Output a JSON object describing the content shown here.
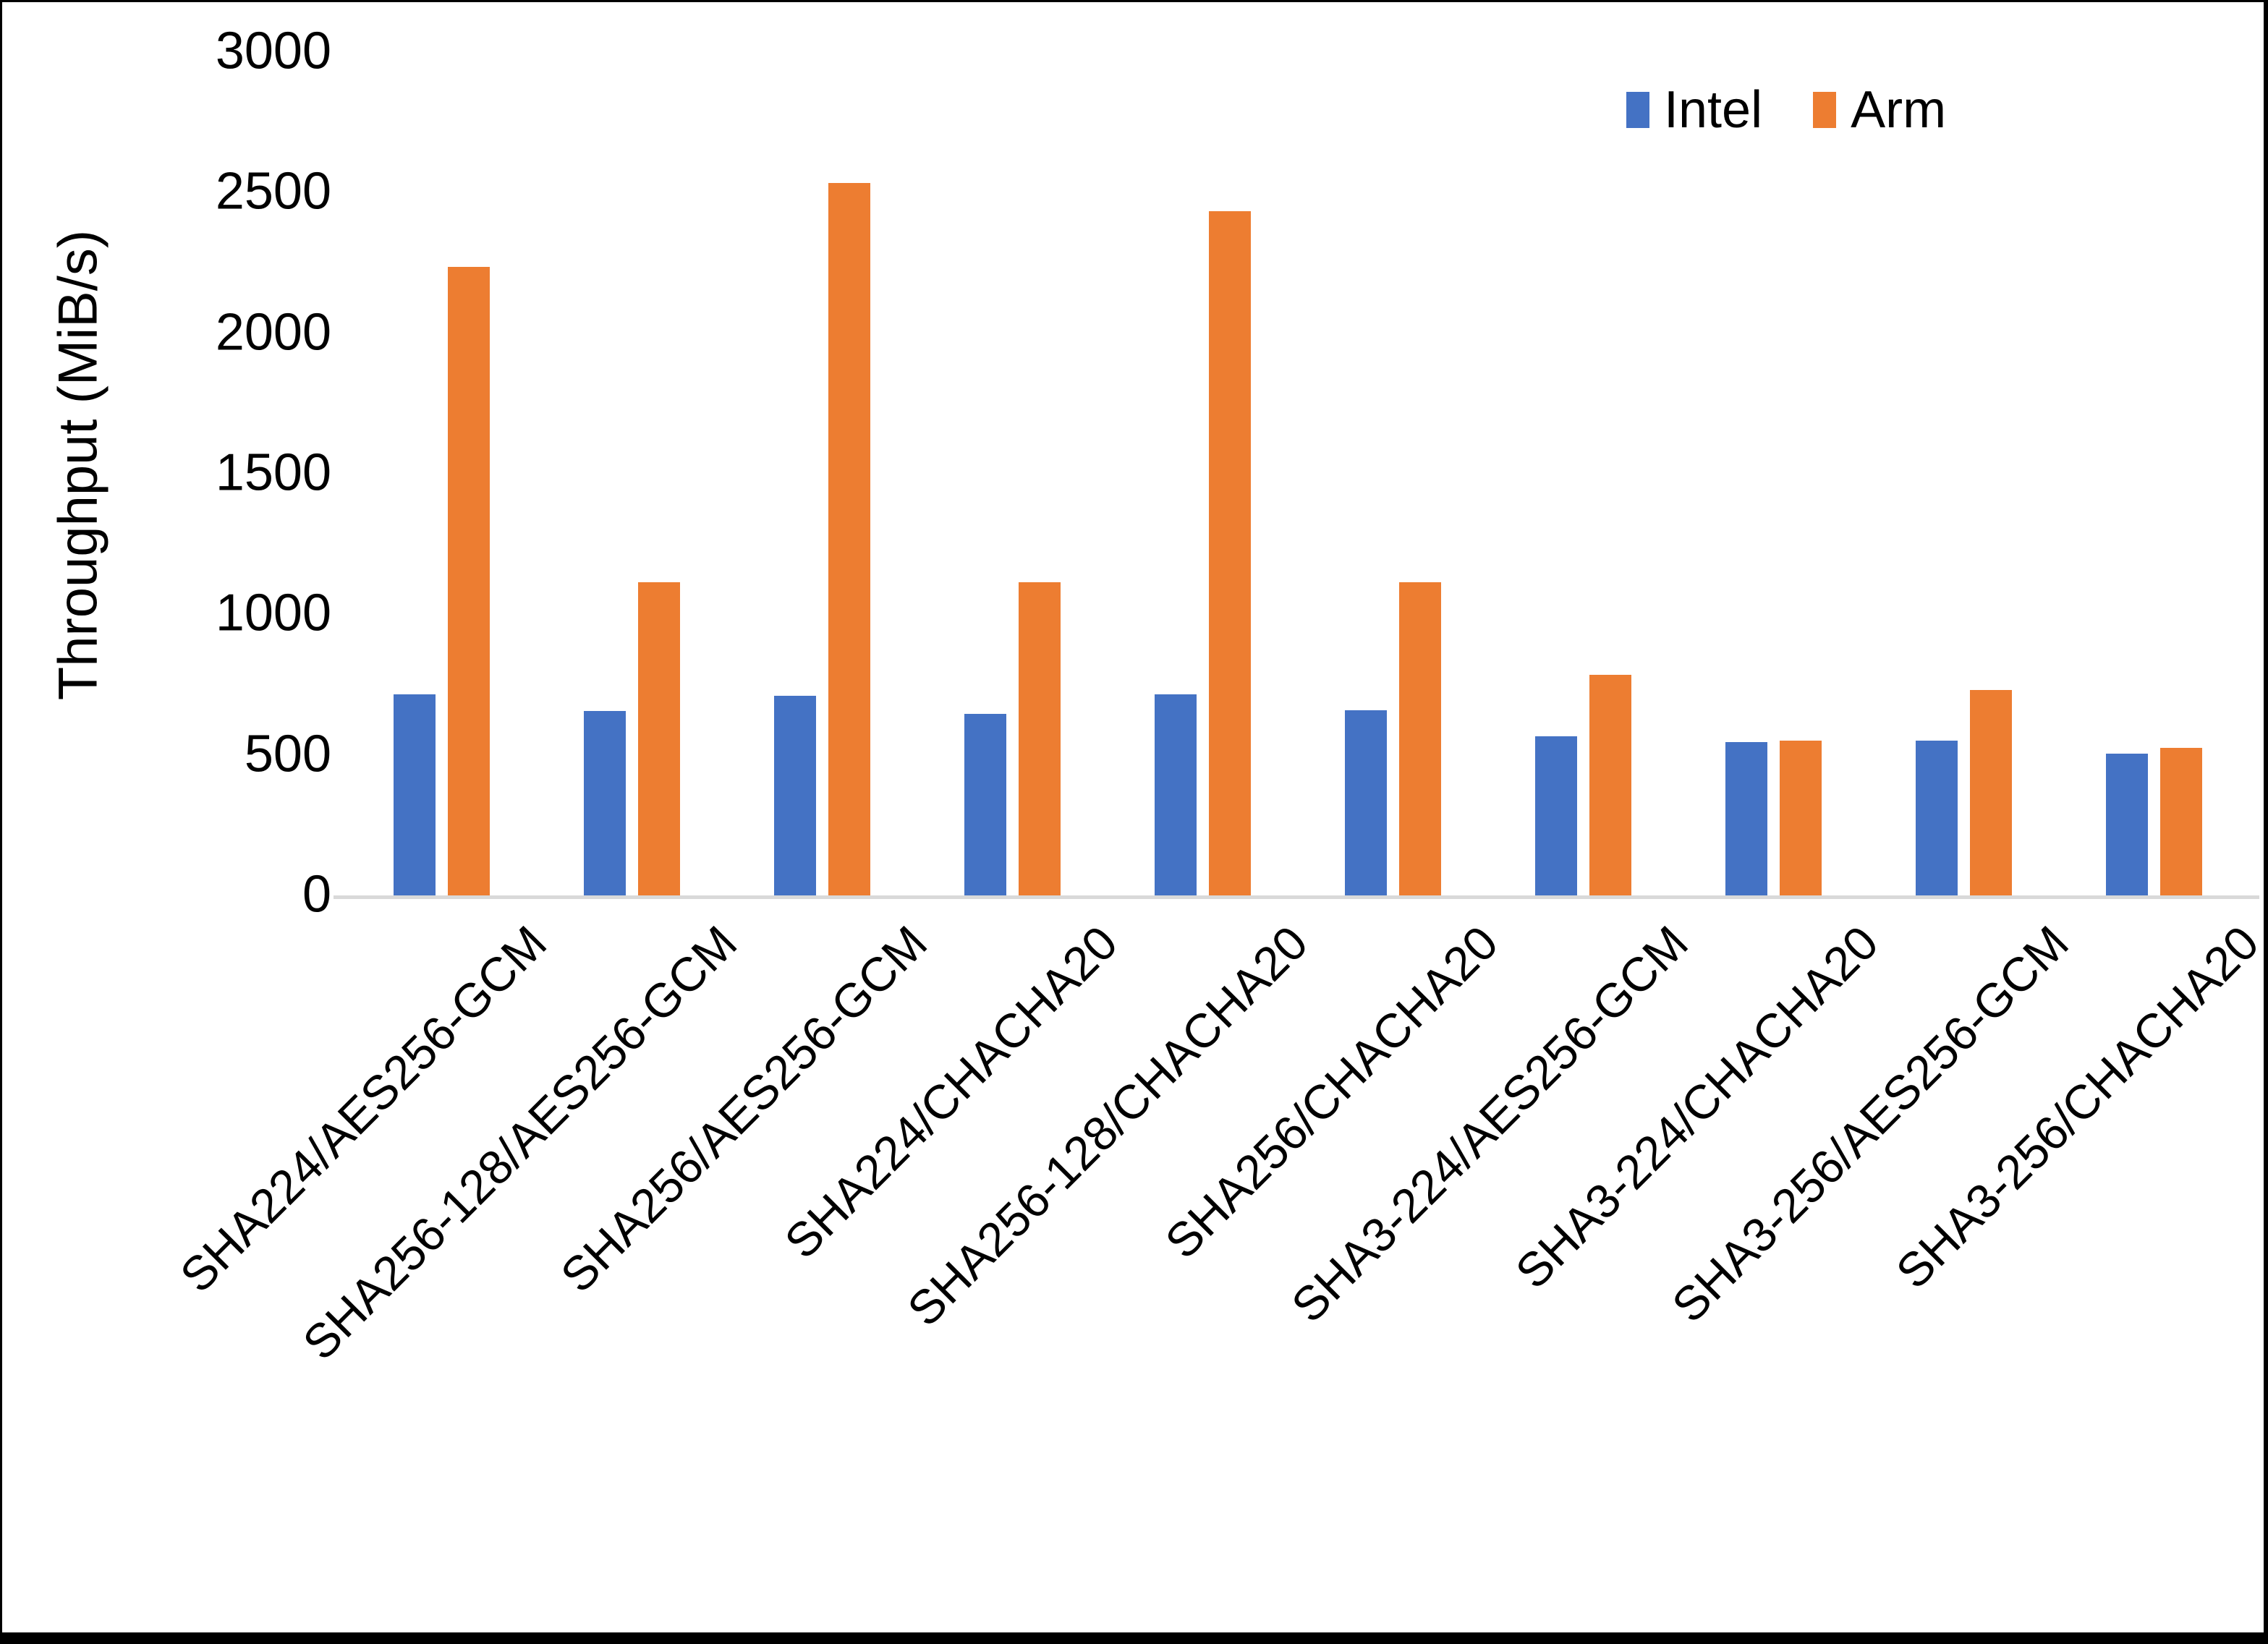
{
  "chart_data": {
    "type": "bar",
    "title": "",
    "xlabel": "",
    "ylabel": "Throughput (MiB/s)",
    "ylim": [
      0,
      3000
    ],
    "yticks": [
      0,
      500,
      1000,
      1500,
      2000,
      2500,
      3000
    ],
    "grid": false,
    "legend_position": "top-right",
    "categories": [
      "SHA224/AES256-GCM",
      "SHA256-128/AES256-GCM",
      "SHA256/AES256-GCM",
      "SHA224/CHACHA20",
      "SHA256-128/CHACHA20",
      "SHA256/CHACHA20",
      "SHA3-224/AES256-GCM",
      "SHA3-224/CHACHA20",
      "SHA3-256/AES256-GCM",
      "SHA3-256/CHACHA20"
    ],
    "series": [
      {
        "name": "Intel",
        "color": "#4472C4",
        "values": [
          720,
          660,
          715,
          650,
          720,
          665,
          570,
          550,
          555,
          510
        ]
      },
      {
        "name": "Arm",
        "color": "#ED7D31",
        "values": [
          2240,
          1120,
          2540,
          1120,
          2440,
          1120,
          790,
          555,
          735,
          530
        ]
      }
    ]
  },
  "colors": {
    "axis_line": "#D9D9D9",
    "text": "#000000",
    "background": "#FFFFFF",
    "frame": "#000000"
  }
}
